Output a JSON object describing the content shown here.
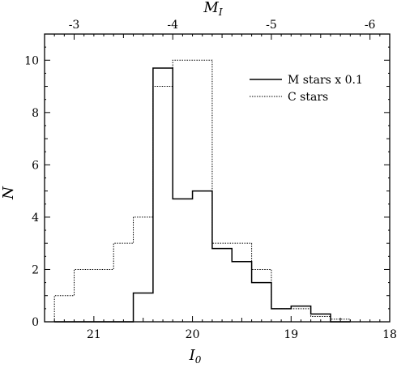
{
  "chart_data": {
    "type": "histogram",
    "title": "",
    "xlabel": "I",
    "xlabel_subscript": "0",
    "ylabel": "N",
    "top_xlabel": "M",
    "top_xlabel_subscript": "I",
    "xlim": [
      21.5,
      18.0
    ],
    "ylim": [
      0,
      11
    ],
    "x_ticks": [
      21,
      20,
      19,
      18
    ],
    "x_tick_labels": [
      "21",
      "20",
      "19",
      "18"
    ],
    "y_ticks": [
      0,
      2,
      4,
      6,
      8,
      10
    ],
    "y_tick_labels": [
      "0",
      "2",
      "4",
      "6",
      "8",
      "10"
    ],
    "top_axis": {
      "offset": 24.2,
      "ticks": [
        -3,
        -4,
        -5,
        -6
      ],
      "tick_labels": [
        "-3",
        "-4",
        "-5",
        "-6"
      ]
    },
    "bin_edges": [
      21.4,
      21.2,
      21.0,
      20.8,
      20.6,
      20.4,
      20.2,
      20.0,
      19.8,
      19.6,
      19.4,
      19.2,
      19.0,
      18.8,
      18.6,
      18.4
    ],
    "series": [
      {
        "name": "M stars x 0.1",
        "style": "solid",
        "values": [
          0,
          0,
          0,
          0,
          1.1,
          9.7,
          4.7,
          5.0,
          2.8,
          2.3,
          1.5,
          0.5,
          0.6,
          0.3,
          0
        ]
      },
      {
        "name": "C stars",
        "style": "dotted",
        "values": [
          1,
          2,
          2,
          3,
          4,
          9,
          10,
          10,
          3,
          3,
          2,
          0.5,
          0.5,
          0.2,
          0.1
        ]
      }
    ],
    "legend_position": "top-right",
    "grid": false
  }
}
